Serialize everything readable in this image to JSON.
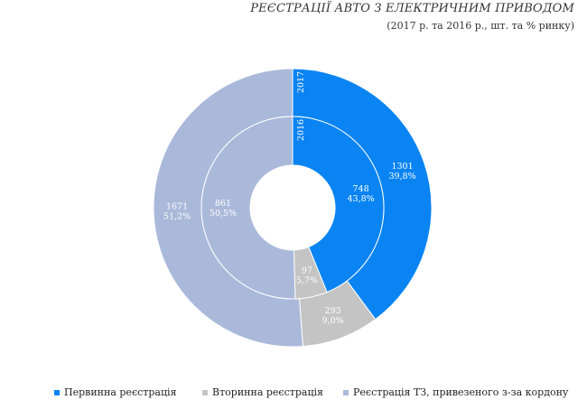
{
  "chart": {
    "title": "РЕЄСТРАЦІЇ АВТО З ЕЛЕКТРИЧНИМ ПРИВОДОМ",
    "subtitle": "(2017 р. та 2016 р., шт. та % ринку)"
  },
  "chart_data": {
    "type": "pie",
    "subtype": "nested-donut",
    "title": "РЕЄСТРАЦІЇ АВТО З ЕЛЕКТРИЧНИМ ПРИВОДОМ",
    "subtitle": "(2017 р. та 2016 р., шт. та % ринку)",
    "categories": [
      "Первинна реєстрація",
      "Вторинна реєстрація",
      "Реєстрація ТЗ, привезеного з-за кордону"
    ],
    "colors": [
      "#0a84f2",
      "#c4c4c4",
      "#aab9da"
    ],
    "series": [
      {
        "name": "2017",
        "ring": "outer",
        "values": [
          1301,
          293,
          1671
        ],
        "labels": [
          "1301\n39,8%",
          "293\n9,0%",
          "1671\n51,2%"
        ]
      },
      {
        "name": "2016",
        "ring": "inner",
        "values": [
          748,
          97,
          861
        ],
        "labels": [
          "748\n43,8%",
          "97\n5,7%",
          "861\n50,5%"
        ]
      }
    ],
    "legend_position": "bottom"
  }
}
